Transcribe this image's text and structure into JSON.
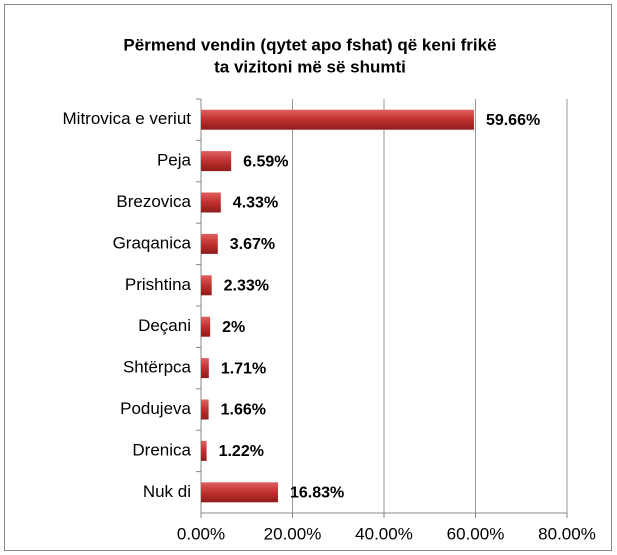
{
  "chart_data": {
    "type": "bar",
    "orientation": "horizontal",
    "title": [
      "Përmend vendin (qytet apo fshat) që keni frikë",
      "ta vizitoni më së shumti"
    ],
    "categories": [
      "Mitrovica e veriut",
      "Peja",
      "Brezovica",
      "Graqanica",
      "Prishtina",
      "Deçani",
      "Shtërpca",
      "Podujeva",
      "Drenica",
      "Nuk di"
    ],
    "values": [
      59.66,
      6.59,
      4.33,
      3.67,
      2.33,
      2,
      1.71,
      1.66,
      1.22,
      16.83
    ],
    "value_labels": [
      "59.66%",
      "6.59%",
      "4.33%",
      "3.67%",
      "2.33%",
      "2%",
      "1.71%",
      "1.66%",
      "1.22%",
      "16.83%"
    ],
    "color": "#c0302e",
    "xlim": [
      0,
      80
    ],
    "xticks": [
      {
        "value": 0,
        "label": "0.00%"
      },
      {
        "value": 20,
        "label": "20.00%"
      },
      {
        "value": 40,
        "label": "40.00%"
      },
      {
        "value": 60,
        "label": "60.00%"
      },
      {
        "value": 80,
        "label": "80.00%"
      }
    ],
    "grid": true
  }
}
